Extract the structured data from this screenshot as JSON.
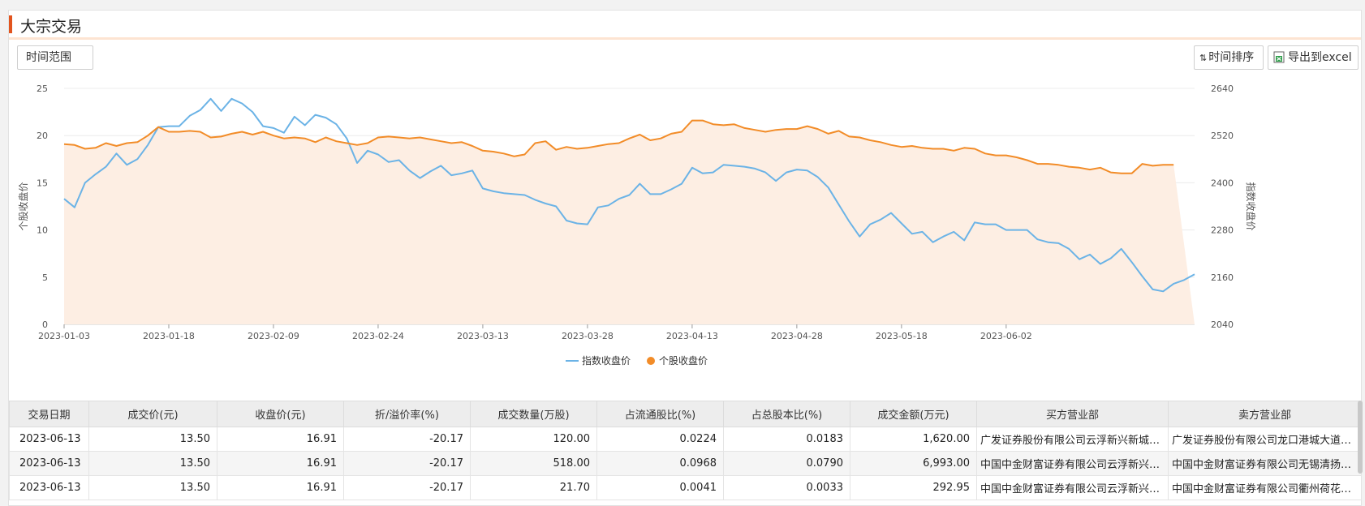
{
  "panel": {
    "title": "大宗交易"
  },
  "toolbar": {
    "range_label": "时间范围",
    "sort_label": "时间排序",
    "sort_glyph": "⇅",
    "export_label": "导出到excel"
  },
  "colors": {
    "accent": "#e2541e",
    "index_line": "#6bb3e6",
    "stock_line": "#f28c28",
    "stock_fill": "#fdeee3"
  },
  "chart_data": {
    "type": "line",
    "x_ticks": [
      "2023-01-03",
      "2023-01-18",
      "2023-02-09",
      "2023-02-24",
      "2023-03-13",
      "2023-03-28",
      "2023-04-13",
      "2023-04-28",
      "2023-05-18",
      "2023-06-02"
    ],
    "ylabel_left": "个股收盘价",
    "ylabel_right": "指数收盘价",
    "y_left_ticks": [
      0,
      5,
      10,
      15,
      20,
      25
    ],
    "y_right_ticks": [
      2040,
      2160,
      2280,
      2400,
      2520,
      2640
    ],
    "ylim_left": [
      0,
      25
    ],
    "ylim_right": [
      2040,
      2640
    ],
    "legend_position": "bottom-center",
    "series": [
      {
        "name": "指数收盘价",
        "axis": "left",
        "values": [
          13.3,
          12.4,
          15.0,
          15.9,
          16.7,
          18.1,
          16.9,
          17.5,
          19.0,
          20.9,
          21.0,
          21.0,
          22.1,
          22.7,
          23.9,
          22.6,
          23.9,
          23.4,
          22.5,
          21.0,
          20.8,
          20.3,
          22.0,
          21.1,
          22.2,
          21.9,
          21.2,
          19.7,
          17.1,
          18.4,
          18.0,
          17.2,
          17.4,
          16.3,
          15.5,
          16.2,
          16.8,
          15.8,
          16.0,
          16.3,
          14.4,
          14.1,
          13.9,
          13.8,
          13.7,
          13.2,
          12.8,
          12.5,
          11.0,
          10.7,
          10.6,
          12.4,
          12.6,
          13.3,
          13.7,
          14.9,
          13.8,
          13.8,
          14.3,
          14.9,
          16.6,
          16.0,
          16.1,
          16.9,
          16.8,
          16.7,
          16.5,
          16.1,
          15.2,
          16.1,
          16.4,
          16.3,
          15.6,
          14.5,
          12.7,
          10.9,
          9.3,
          10.6,
          11.1,
          11.8,
          10.7,
          9.6,
          9.8,
          8.7,
          9.3,
          9.8,
          8.9,
          10.8,
          10.6,
          10.6,
          10.0,
          10.0,
          10.0,
          9.0,
          8.7,
          8.6,
          8.0,
          6.9,
          7.4,
          6.4,
          7.0,
          8.0,
          6.6,
          5.1,
          3.7,
          3.5,
          4.3,
          4.7,
          5.3
        ]
      },
      {
        "name": "个股收盘价",
        "axis": "left",
        "values": [
          19.1,
          19.0,
          18.6,
          18.7,
          19.2,
          18.9,
          19.2,
          19.3,
          20.0,
          20.9,
          20.4,
          20.4,
          20.5,
          20.4,
          19.8,
          19.9,
          20.2,
          20.4,
          20.1,
          20.4,
          20.0,
          19.7,
          19.8,
          19.7,
          19.3,
          19.8,
          19.4,
          19.2,
          19.0,
          19.2,
          19.8,
          19.9,
          19.8,
          19.7,
          19.8,
          19.6,
          19.4,
          19.2,
          19.3,
          18.9,
          18.4,
          18.3,
          18.1,
          17.8,
          18.0,
          19.2,
          19.4,
          18.5,
          18.8,
          18.6,
          18.7,
          18.9,
          19.1,
          19.2,
          19.7,
          20.1,
          19.5,
          19.7,
          20.2,
          20.4,
          21.6,
          21.6,
          21.2,
          21.1,
          21.2,
          20.8,
          20.6,
          20.4,
          20.6,
          20.7,
          20.7,
          21.0,
          20.7,
          20.2,
          20.5,
          19.9,
          19.8,
          19.5,
          19.3,
          19.0,
          18.8,
          18.9,
          18.7,
          18.6,
          18.6,
          18.4,
          18.7,
          18.6,
          18.1,
          17.9,
          17.9,
          17.7,
          17.4,
          17.0,
          17.0,
          16.9,
          16.7,
          16.6,
          16.4,
          16.6,
          16.1,
          16.0,
          16.0,
          17.0,
          16.8,
          16.9,
          16.9
        ]
      }
    ]
  },
  "table": {
    "columns": [
      "交易日期",
      "成交价(元)",
      "收盘价(元)",
      "折/溢价率(%)",
      "成交数量(万股)",
      "占流通股比(%)",
      "占总股本比(%)",
      "成交金额(万元)",
      "买方营业部",
      "卖方营业部"
    ],
    "rows": [
      [
        "2023-06-13",
        "13.50",
        "16.91",
        "-20.17",
        "120.00",
        "0.0224",
        "0.0183",
        "1,620.00",
        "广发证券股份有限公司云浮新兴新城证券营业部",
        "广发证券股份有限公司龙口港城大道证券营业部"
      ],
      [
        "2023-06-13",
        "13.50",
        "16.91",
        "-20.17",
        "518.00",
        "0.0968",
        "0.0790",
        "6,993.00",
        "中国中金财富证券有限公司云浮新兴证券营业部",
        "中国中金财富证券有限公司无锡清扬路证券营业部"
      ],
      [
        "2023-06-13",
        "13.50",
        "16.91",
        "-20.17",
        "21.70",
        "0.0041",
        "0.0033",
        "292.95",
        "中国中金财富证券有限公司云浮新兴证券营业部",
        "中国中金财富证券有限公司衢州荷花中路证券营业部"
      ]
    ]
  }
}
